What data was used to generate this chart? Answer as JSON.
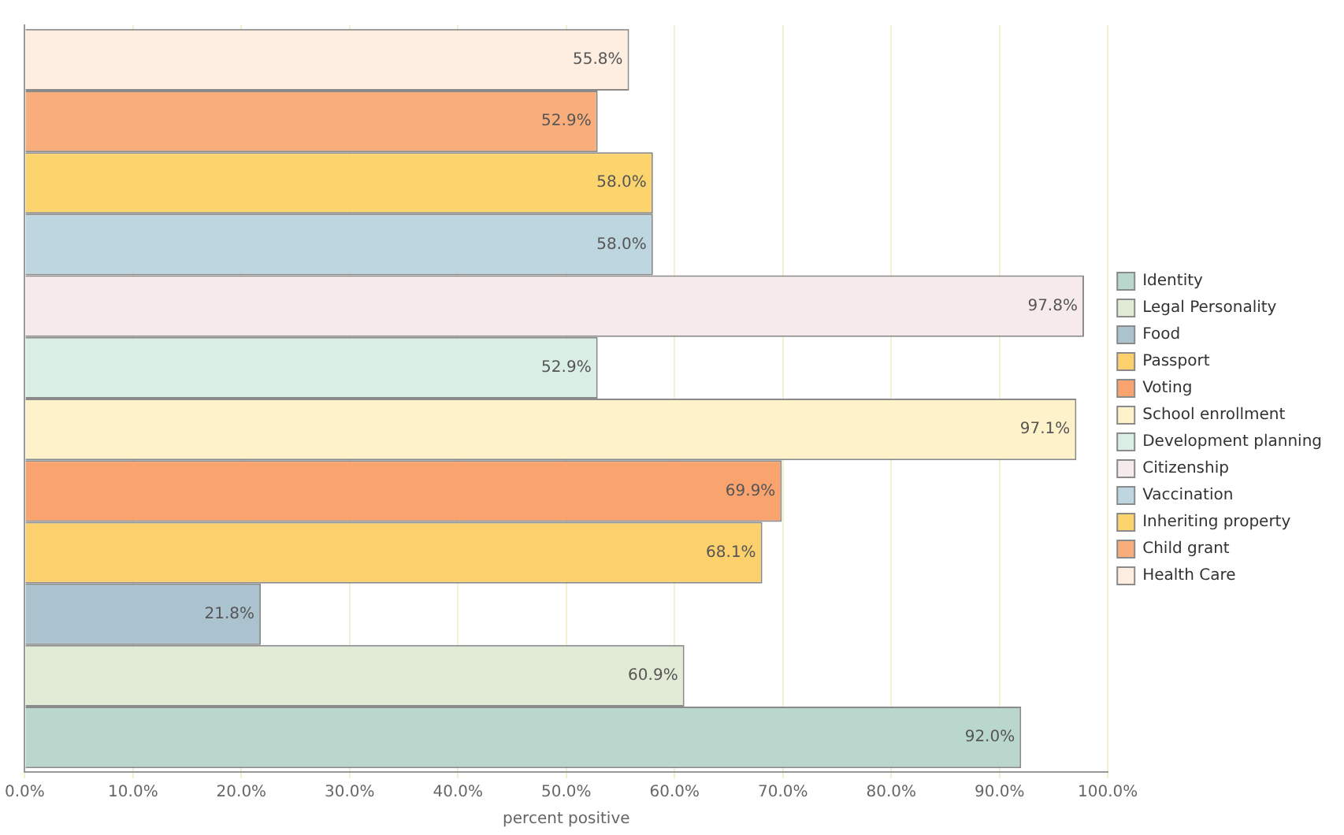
{
  "chart_data": {
    "type": "bar",
    "orientation": "horizontal",
    "categories": [
      null
    ],
    "xlabel": "percent positive",
    "xlim": [
      0,
      100
    ],
    "xticks": [
      {
        "value": 0,
        "label": "0.0%"
      },
      {
        "value": 10,
        "label": "10.0%"
      },
      {
        "value": 20,
        "label": "20.0%"
      },
      {
        "value": 30,
        "label": "30.0%"
      },
      {
        "value": 40,
        "label": "40.0%"
      },
      {
        "value": 50,
        "label": "50.0%"
      },
      {
        "value": 60,
        "label": "60.0%"
      },
      {
        "value": 70,
        "label": "70.0%"
      },
      {
        "value": 80,
        "label": "80.0%"
      },
      {
        "value": 90,
        "label": "90.0%"
      },
      {
        "value": 100,
        "label": "100.0%"
      }
    ],
    "grid": "x",
    "legend": "right",
    "tick_labels": "x",
    "series": [
      {
        "name": "Identity",
        "color": "#b9d7cd",
        "values": [
          92.0
        ],
        "value_labels": [
          "92.0%"
        ]
      },
      {
        "name": "Legal Personality",
        "color": "#e1ebd6",
        "values": [
          60.9
        ],
        "value_labels": [
          "60.9%"
        ]
      },
      {
        "name": "Food",
        "color": "#abc3cf",
        "values": [
          21.8
        ],
        "value_labels": [
          "21.8%"
        ]
      },
      {
        "name": "Passport",
        "color": "#fcd06c",
        "values": [
          68.1
        ],
        "value_labels": [
          "68.1%"
        ]
      },
      {
        "name": "Voting",
        "color": "#f9a36f",
        "values": [
          69.9
        ],
        "value_labels": [
          "69.9%"
        ]
      },
      {
        "name": "School enrollment",
        "color": "#fdf2c9",
        "values": [
          97.1
        ],
        "value_labels": [
          "97.1%"
        ]
      },
      {
        "name": "Development planning",
        "color": "#d9eee5",
        "values": [
          52.9
        ],
        "value_labels": [
          "52.9%"
        ]
      },
      {
        "name": "Citizenship",
        "color": "#f6eaea",
        "values": [
          97.8
        ],
        "value_labels": [
          "97.8%"
        ]
      },
      {
        "name": "Vaccination",
        "color": "#bdd6e0",
        "values": [
          58.0
        ],
        "value_labels": [
          "58.0%"
        ]
      },
      {
        "name": "Inheriting property",
        "color": "#fcd46e",
        "values": [
          58.0
        ],
        "value_labels": [
          "58.0%"
        ]
      },
      {
        "name": "Child grant",
        "color": "#f8ad7b",
        "values": [
          52.9
        ],
        "value_labels": [
          "52.9%"
        ]
      },
      {
        "name": "Health Care",
        "color": "#fdeee1",
        "values": [
          55.8
        ],
        "value_labels": [
          "55.8%"
        ]
      }
    ]
  }
}
